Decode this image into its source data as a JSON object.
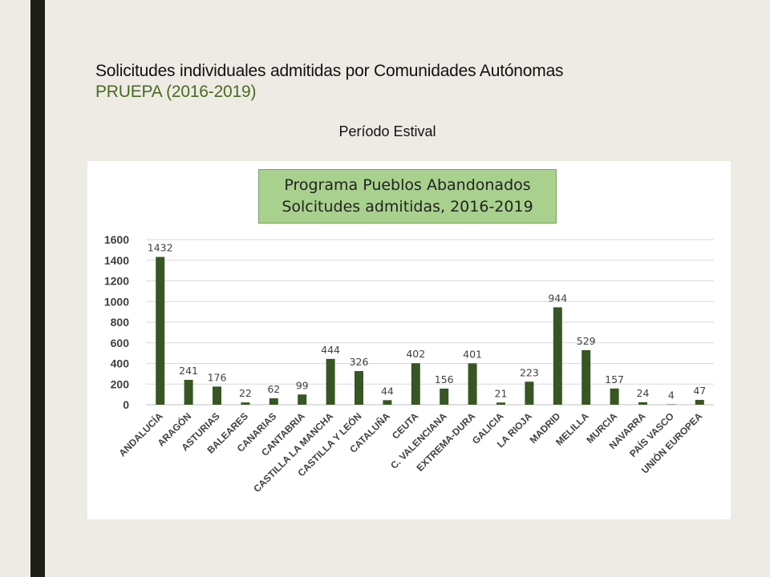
{
  "slide": {
    "title_line1": "Solicitudes individuales admitidas por Comunidades Autónomas",
    "title_line2": "PRUEPA (2016-2019)",
    "subtitle": "Período Estival"
  },
  "colors": {
    "bar": "#375623",
    "title_box": "#a9d18e",
    "side_bar": "#1b1f15",
    "title_line2": "#4a6a1f"
  },
  "chart_data": {
    "type": "bar",
    "title_line1": "Programa Pueblos Abandonados",
    "title_line2": "Solcitudes admitidas, 2016-2019",
    "categories": [
      "ANDALUCÍA",
      "ARAGÓN",
      "ASTURIAS",
      "BALEARES",
      "CANARIAS",
      "CANTABRIA",
      "CASTILLA LA MANCHA",
      "CASTILLA Y LEÓN",
      "CATALUÑA",
      "CEUTA",
      "C. VALENCIANA",
      "EXTREMA-DURA",
      "GALICIA",
      "LA RIOJA",
      "MADRID",
      "MELILLA",
      "MURCIA",
      "NAVARRA",
      "PAÍS VASCO",
      "UNIÓN EUROPEA"
    ],
    "values": [
      1432,
      241,
      176,
      22,
      62,
      99,
      444,
      326,
      44,
      402,
      156,
      401,
      21,
      223,
      944,
      529,
      157,
      24,
      4,
      47
    ],
    "yticks": [
      0,
      200,
      400,
      600,
      800,
      1000,
      1200,
      1400,
      1600
    ],
    "ylim": [
      0,
      1600
    ],
    "grid": true,
    "data_labels": true
  }
}
